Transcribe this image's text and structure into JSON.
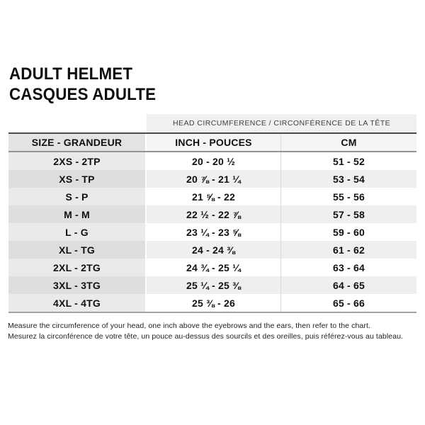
{
  "title": {
    "line1": "ADULT HELMET",
    "line2": "CASQUES ADULTE"
  },
  "table": {
    "span_header": "HEAD CIRCUMFERENCE / CIRCONFÉRENCE DE LA TÊTE",
    "columns": [
      "SIZE - GRANDEUR",
      "INCH - POUCES",
      "CM"
    ],
    "rows": [
      {
        "size": "2XS - 2TP",
        "inch": "20 - 20 ½",
        "cm": "51 - 52"
      },
      {
        "size": "XS - TP",
        "inch": "20 ⅞ - 21 ¼",
        "cm": "53 - 54"
      },
      {
        "size": "S - P",
        "inch": "21 ⅝ - 22",
        "cm": "55 - 56"
      },
      {
        "size": "M - M",
        "inch": "22 ½ - 22 ⅞",
        "cm": "57 - 58"
      },
      {
        "size": "L - G",
        "inch": "23 ¼ - 23 ⅝",
        "cm": "59 - 60"
      },
      {
        "size": "XL - TG",
        "inch": "24 - 24 ⅜",
        "cm": "61 - 62"
      },
      {
        "size": "2XL - 2TG",
        "inch": "24 ¾ - 25 ¼",
        "cm": "63 - 64"
      },
      {
        "size": "3XL - 3TG",
        "inch": "25 ¼ - 25 ⅜",
        "cm": "64 - 65"
      },
      {
        "size": "4XL - 4TG",
        "inch": "25 ⅜ - 26",
        "cm": "65 - 66"
      }
    ]
  },
  "notes": {
    "en": "Measure the circumference of your head, one inch above the eyebrows and the ears, then refer to the chart.",
    "fr": "Mesurez la circonférence de votre tête, un pouce au-dessus des sourcils et des oreilles, puis référez-vous au tableau."
  },
  "colors": {
    "span_header_bg": "#f0f0f0",
    "size_col_bg": "#eaeaea",
    "size_col_stripe_bg": "#dedede",
    "data_stripe_bg": "#efefef",
    "header_top_border": "#4c4c4c",
    "table_bottom_border": "#a3a3a3",
    "text": "#101010"
  }
}
